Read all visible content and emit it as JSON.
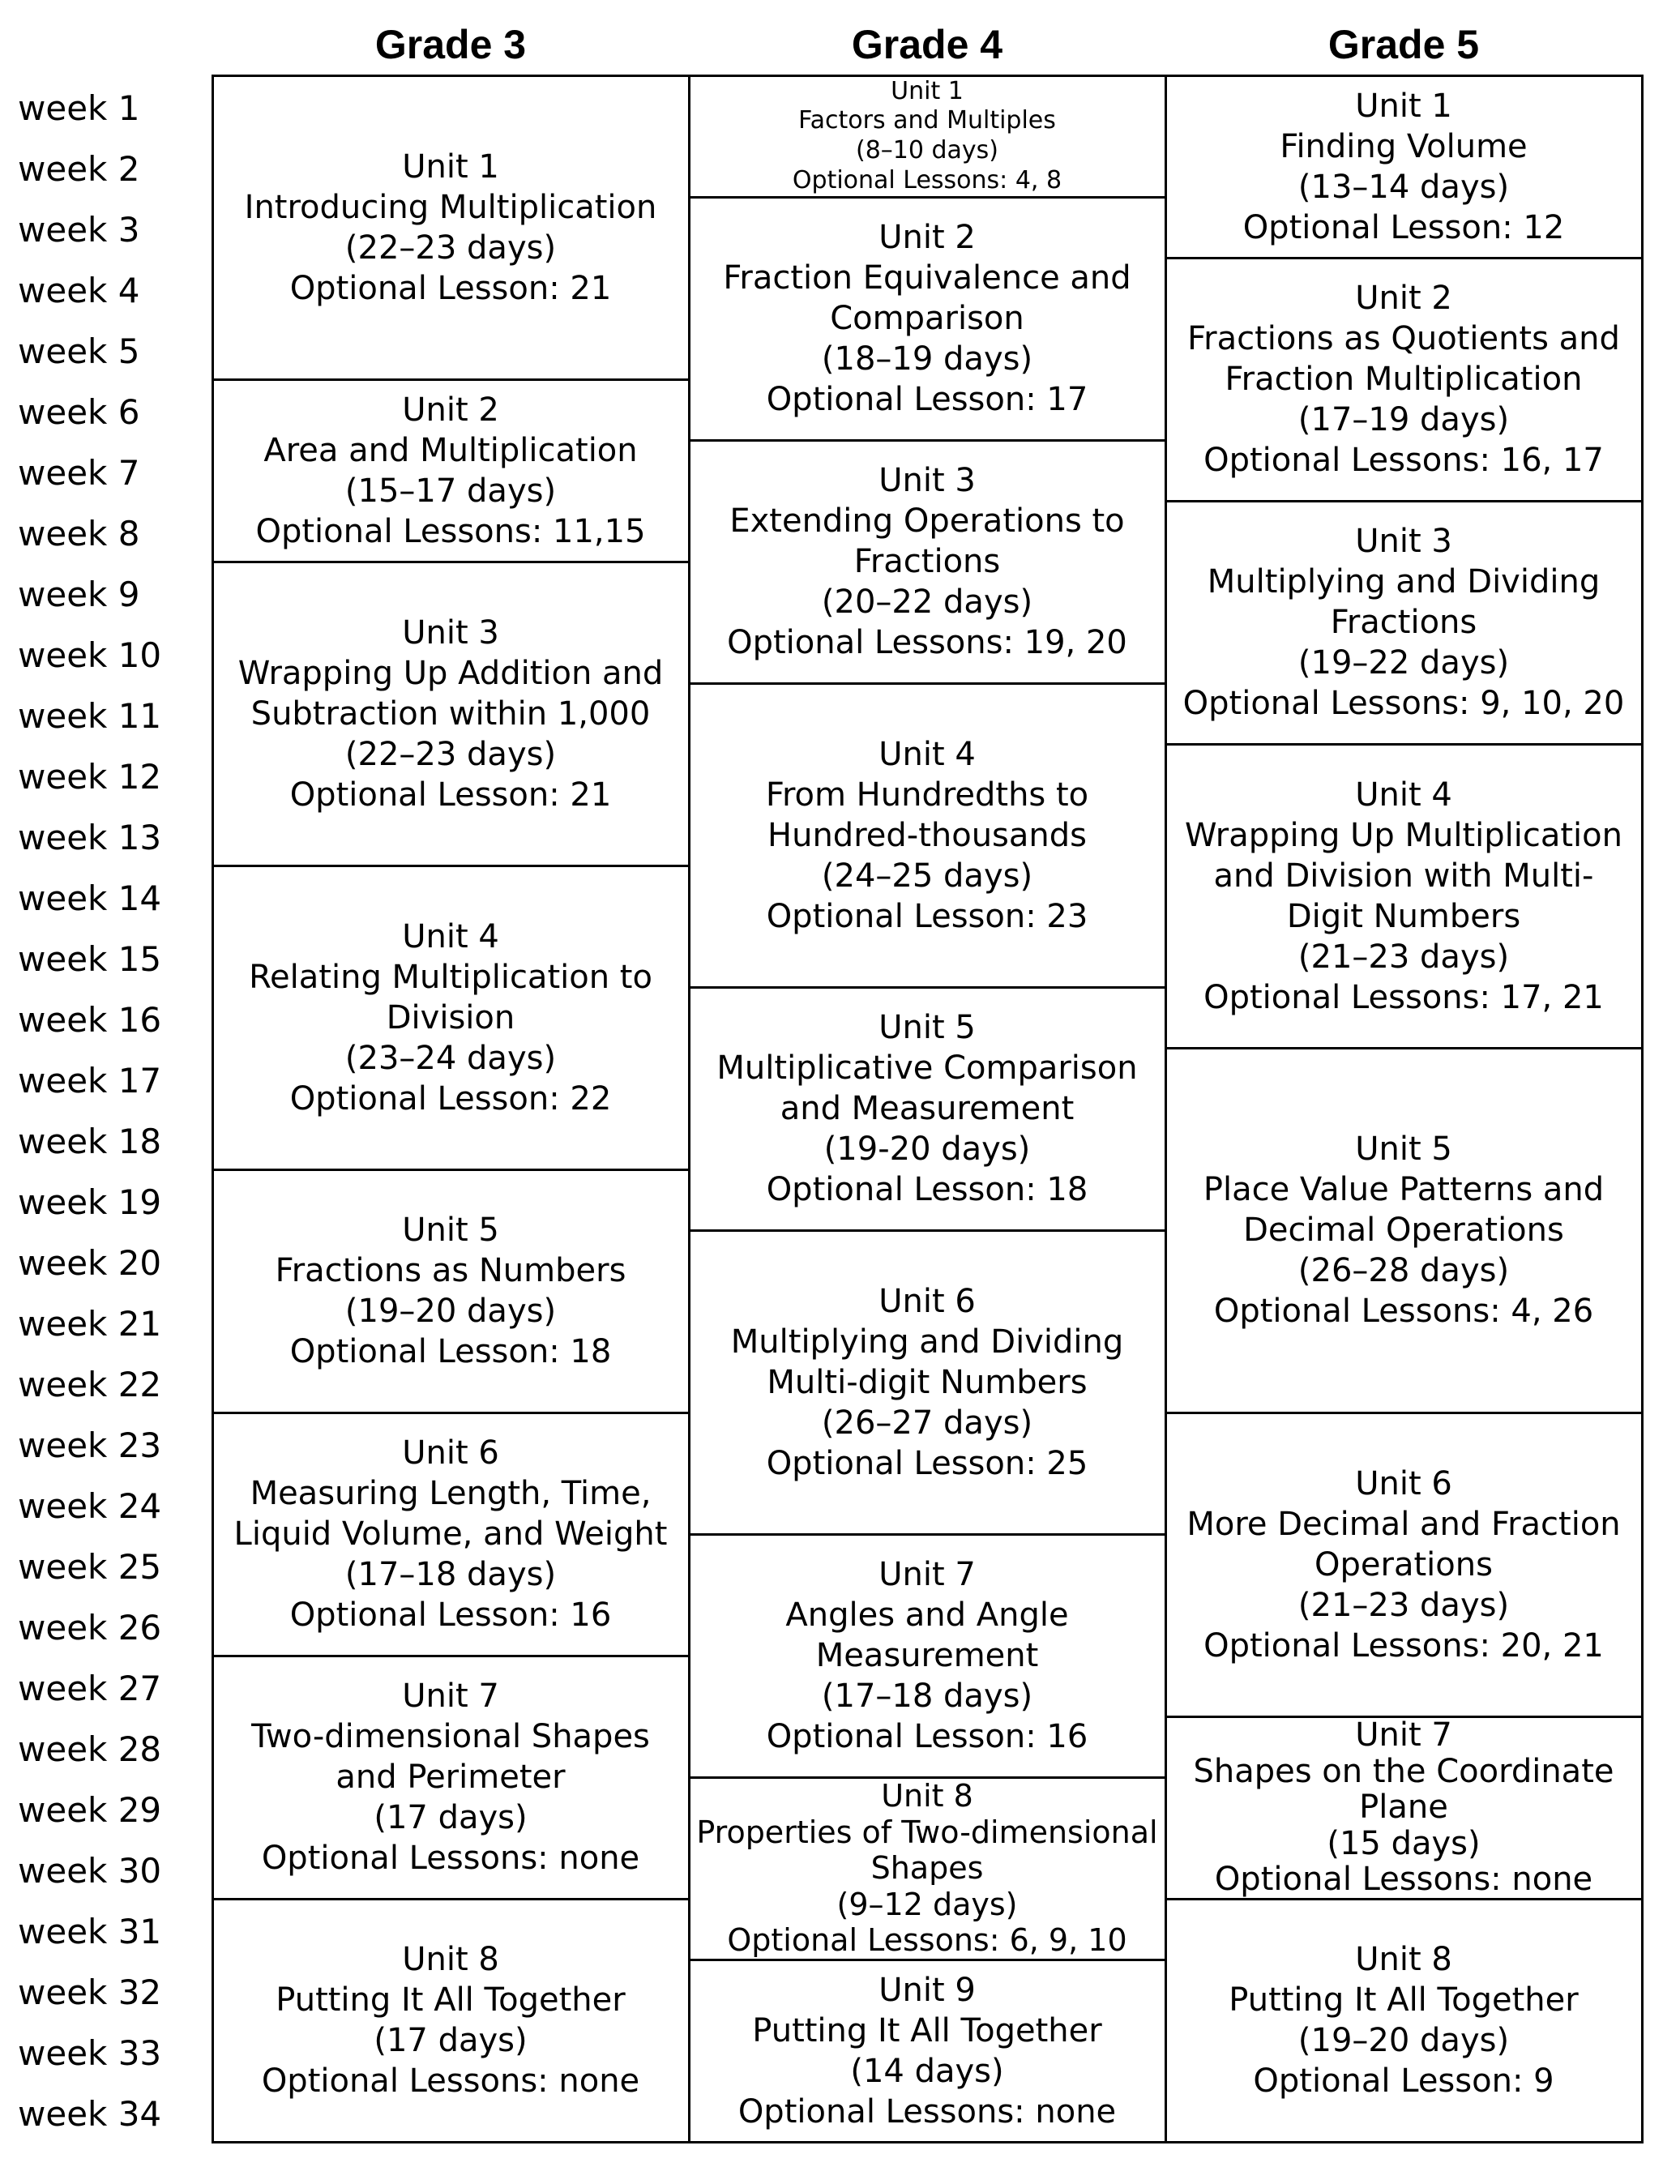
{
  "weeks": [
    "week 1",
    "week 2",
    "week 3",
    "week 4",
    "week 5",
    "week 6",
    "week 7",
    "week 8",
    "week 9",
    "week 10",
    "week 11",
    "week 12",
    "week 13",
    "week 14",
    "week 15",
    "week 16",
    "week 17",
    "week 18",
    "week 19",
    "week 20",
    "week 21",
    "week 22",
    "week 23",
    "week 24",
    "week 25",
    "week 26",
    "week 27",
    "week 28",
    "week 29",
    "week 30",
    "week 31",
    "week 32",
    "week 33",
    "week 34"
  ],
  "columns": [
    {
      "header": "Grade 3",
      "units": [
        {
          "title": "Unit 1",
          "name": "Introducing Multiplication",
          "days": "(22–23 days)",
          "optional": "Optional Lesson: 21",
          "weeks": 5
        },
        {
          "title": "Unit 2",
          "name": "Area and Multiplication",
          "days": "(15–17 days)",
          "optional": "Optional Lessons: 11,15",
          "weeks": 3
        },
        {
          "title": "Unit 3",
          "name": "Wrapping Up Addition and\nSubtraction within 1,000",
          "days": "(22–23 days)",
          "optional": "Optional Lesson: 21",
          "weeks": 5
        },
        {
          "title": "Unit 4",
          "name": "Relating Multiplication to\nDivision",
          "days": "(23–24 days)",
          "optional": "Optional Lesson: 22",
          "weeks": 5
        },
        {
          "title": "Unit 5",
          "name": "Fractions as Numbers",
          "days": "(19–20 days)",
          "optional": "Optional Lesson: 18",
          "weeks": 4
        },
        {
          "title": "Unit 6",
          "name": "Measuring Length, Time,\nLiquid Volume, and Weight",
          "days": "(17–18 days)",
          "optional": "Optional Lesson: 16",
          "weeks": 4
        },
        {
          "title": "Unit 7",
          "name": "Two-dimensional Shapes\nand Perimeter",
          "days": "(17 days)",
          "optional": "Optional Lessons: none",
          "weeks": 4
        },
        {
          "title": "Unit 8",
          "name": "Putting It All Together",
          "days": "(17 days)",
          "optional": "Optional Lessons: none",
          "weeks": 4
        }
      ]
    },
    {
      "header": "Grade 4",
      "units": [
        {
          "title": "Unit 1",
          "name": "Factors and Multiples",
          "days": "(8–10 days)",
          "optional": "Optional Lessons: 4, 8",
          "weeks": 2,
          "fs": 30
        },
        {
          "title": "Unit 2",
          "name": "Fraction Equivalence and\nComparison",
          "days": "(18–19 days)",
          "optional": "Optional Lesson: 17",
          "weeks": 4
        },
        {
          "title": "Unit 3",
          "name": "Extending Operations to\nFractions",
          "days": "(20–22 days)",
          "optional": "Optional Lessons: 19, 20",
          "weeks": 4
        },
        {
          "title": "Unit 4",
          "name": "From Hundredths to\nHundred-thousands",
          "days": "(24–25 days)",
          "optional": "Optional Lesson: 23",
          "weeks": 5
        },
        {
          "title": "Unit 5",
          "name": "Multiplicative Comparison\nand Measurement",
          "days": "(19-20 days)",
          "optional": "Optional Lesson: 18",
          "weeks": 4
        },
        {
          "title": "Unit 6",
          "name": "Multiplying and Dividing\nMulti-digit Numbers",
          "days": "(26–27 days)",
          "optional": "Optional Lesson: 25",
          "weeks": 5
        },
        {
          "title": "Unit 7",
          "name": "Angles and Angle\nMeasurement",
          "days": "(17–18 days)",
          "optional": "Optional Lesson: 16",
          "weeks": 4
        },
        {
          "title": "Unit 8",
          "name": "Properties of Two-dimensional\nShapes",
          "days": "(9–12 days)",
          "optional": "Optional Lessons: 6, 9, 10",
          "weeks": 3,
          "fs": 38
        },
        {
          "title": "Unit 9",
          "name": "Putting It All Together",
          "days": "(14 days)",
          "optional": "Optional Lessons: none",
          "weeks": 3
        }
      ]
    },
    {
      "header": "Grade 5",
      "units": [
        {
          "title": "Unit 1",
          "name": "Finding Volume",
          "days": "(13–14 days)",
          "optional": "Optional Lesson: 12",
          "weeks": 3
        },
        {
          "title": "Unit 2",
          "name": "Fractions as Quotients and\nFraction Multiplication",
          "days": "(17–19 days)",
          "optional": "Optional Lessons: 16, 17",
          "weeks": 4
        },
        {
          "title": "Unit 3",
          "name": "Multiplying and Dividing\nFractions",
          "days": "(19–22 days)",
          "optional": "Optional Lessons: 9, 10, 20",
          "weeks": 4
        },
        {
          "title": "Unit 4",
          "name": "Wrapping Up Multiplication\nand Division with Multi-\nDigit Numbers",
          "days": "(21–23 days)",
          "optional": "Optional Lessons: 17, 21",
          "weeks": 5
        },
        {
          "title": "Unit 5",
          "name": "Place Value Patterns and\nDecimal Operations",
          "days": "(26–28 days)",
          "optional": "Optional Lessons: 4, 26",
          "weeks": 6
        },
        {
          "title": "Unit 6",
          "name": "More Decimal and Fraction\nOperations",
          "days": "(21–23 days)",
          "optional": "Optional Lessons: 20, 21",
          "weeks": 5
        },
        {
          "title": "Unit 7",
          "name": "Shapes on the Coordinate\nPlane",
          "days": "(15 days)",
          "optional": "Optional Lessons: none",
          "weeks": 3
        },
        {
          "title": "Unit 8",
          "name": "Putting It All Together",
          "days": "(19–20 days)",
          "optional": "Optional Lesson: 9",
          "weeks": 4
        }
      ]
    }
  ]
}
